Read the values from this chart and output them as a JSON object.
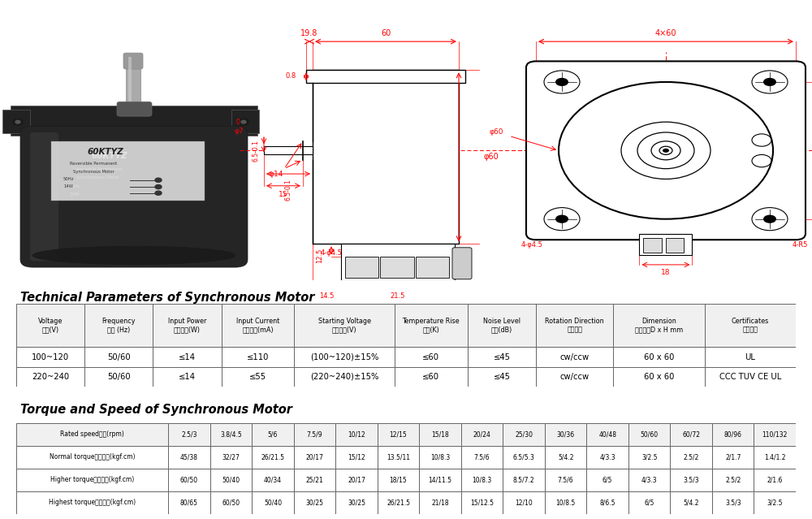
{
  "title1": "Technical Parameters of Synchronous Motor",
  "title2": "Torque and Speed of Synchronous Motor",
  "tech_headers": [
    "Voltage\n电压(V)",
    "Frequency\n频率 (Hz)",
    "Input Power\n输入功率(W)",
    "Input Current\n输入电流(mA)",
    "Starting Voltage\n启动电压(V)",
    "Temperature Rise\n温升(K)",
    "Noise Level\n噪音(dB)",
    "Rotation Direction\n旋转方向",
    "Dimension\n外形尺寸D x H mm",
    "Certificates\n产品认证"
  ],
  "tech_data": [
    [
      "100~120",
      "50/60",
      "≤14",
      "≤110",
      "(100~120)±15%",
      "≤60",
      "≤45",
      "cw/ccw",
      "60 x 60",
      "UL"
    ],
    [
      "220~240",
      "50/60",
      "≤14",
      "≤55",
      "(220~240)±15%",
      "≤60",
      "≤45",
      "cw/ccw",
      "60 x 60",
      "CCC TUV CE UL"
    ]
  ],
  "speed_headers": [
    "Rated speed转速(rpm)",
    "2.5/3",
    "3.8/4.5",
    "5/6",
    "7.5/9",
    "10/12",
    "12/15",
    "15/18",
    "20/24",
    "25/30",
    "30/36",
    "40/48",
    "50/60",
    "60/72",
    "80/96",
    "110/132"
  ],
  "speed_data": [
    [
      "Normal torque普通力矩(kgf.cm)",
      "45/38",
      "32/27",
      "26/21.5",
      "20/17",
      "15/12",
      "13.5/11",
      "10/8.3",
      "7.5/6",
      "6.5/5.3",
      "5/4.2",
      "4/3.3",
      "3/2.5",
      "2.5/2",
      "2/1.7",
      "1.4/1.2"
    ],
    [
      "Higher torque较大力矩(kgf.cm)",
      "60/50",
      "50/40",
      "40/34",
      "25/21",
      "20/17",
      "18/15",
      "14/11.5",
      "10/8.3",
      "8.5/7.2",
      "7.5/6",
      "6/5",
      "4/3.3",
      "3.5/3",
      "2.5/2",
      "2/1.6"
    ],
    [
      "Highest torque特大力矩(kgf.cm)",
      "80/65",
      "60/50",
      "50/40",
      "30/25",
      "30/25",
      "26/21.5",
      "21/18",
      "15/12.5",
      "12/10",
      "10/8.5",
      "8/6.5",
      "6/5",
      "5/4.2",
      "3.5/3",
      "3/2.5"
    ]
  ],
  "bg_color": "#ffffff"
}
